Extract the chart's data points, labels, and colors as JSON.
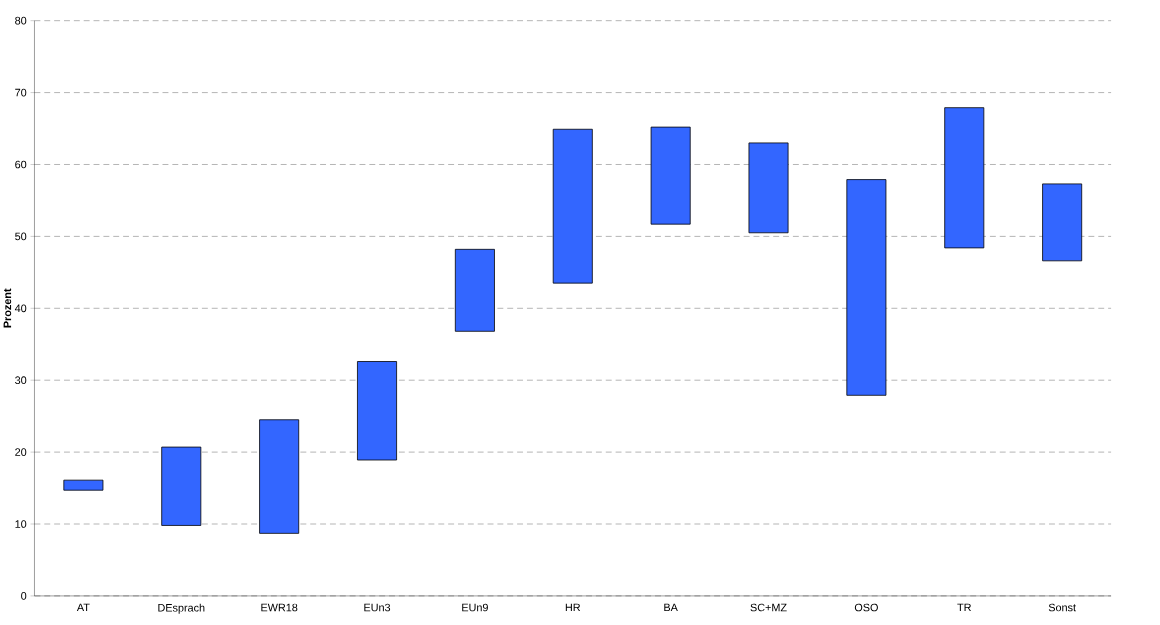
{
  "chart_data": {
    "type": "bar",
    "ylabel": "Prozent",
    "categories": [
      "AT",
      "DEsprach",
      "EWR18",
      "EUn3",
      "EUn9",
      "HR",
      "BA",
      "SC+MZ",
      "OSO",
      "TR",
      "Sonst"
    ],
    "base": [
      14.7,
      9.8,
      8.7,
      18.9,
      36.8,
      43.5,
      51.7,
      50.5,
      27.9,
      48.4,
      46.6
    ],
    "values": [
      1.4,
      10.9,
      15.8,
      13.7,
      11.4,
      21.4,
      13.5,
      12.5,
      30.0,
      19.5,
      10.7
    ],
    "color": "#3366ff",
    "ylim": [
      0,
      80
    ],
    "yticks": [
      0,
      10,
      20,
      30,
      40,
      50,
      60,
      70,
      80
    ],
    "grid": "y"
  }
}
